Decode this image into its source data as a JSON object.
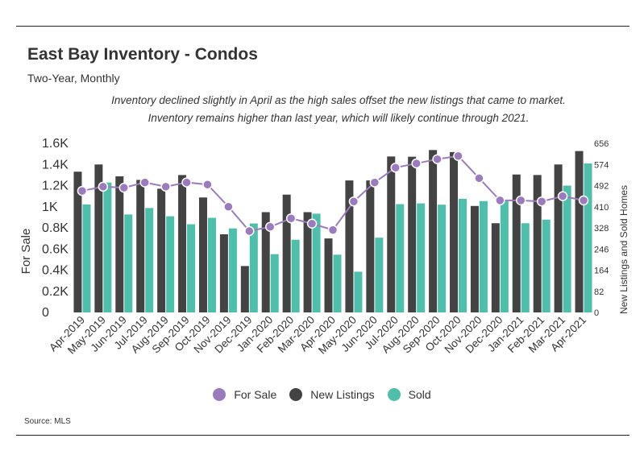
{
  "header": {
    "title": "East Bay Inventory - Condos",
    "subtitle": "Two-Year, Monthly",
    "note": "Inventory declined slightly in April as the high sales offset the new listings that came to market. Inventory remains higher than last year, which will likely continue through 2021."
  },
  "footer": {
    "source": "Source:  MLS"
  },
  "colors": {
    "for_sale": "#9b7bbd",
    "new_listings": "#434343",
    "sold": "#4dbfaa"
  },
  "chart_data": {
    "type": "bar",
    "categories": [
      "Apr-2019",
      "May-2019",
      "Jun-2019",
      "Jul-2019",
      "Aug-2019",
      "Sep-2019",
      "Oct-2019",
      "Nov-2019",
      "Dec-2019",
      "Jan-2020",
      "Feb-2020",
      "Mar-2020",
      "Apr-2020",
      "May-2020",
      "Jun-2020",
      "Jul-2020",
      "Aug-2020",
      "Sep-2020",
      "Oct-2020",
      "Nov-2020",
      "Dec-2020",
      "Jan-2021",
      "Feb-2021",
      "Mar-2021",
      "Apr-2021"
    ],
    "series": [
      {
        "name": "For Sale",
        "type": "line",
        "axis": "left",
        "values": [
          1150,
          1190,
          1180,
          1230,
          1190,
          1230,
          1210,
          1000,
          770,
          810,
          890,
          840,
          780,
          1050,
          1230,
          1370,
          1410,
          1450,
          1480,
          1270,
          1060,
          1060,
          1050,
          1100,
          1060
        ]
      },
      {
        "name": "New Listings",
        "type": "bar",
        "axis": "right",
        "values": [
          546,
          574,
          528,
          514,
          480,
          533,
          446,
          303,
          180,
          389,
          457,
          389,
          287,
          512,
          512,
          605,
          604,
          630,
          622,
          413,
          346,
          535,
          533,
          574,
          626
        ]
      },
      {
        "name": "Sold",
        "type": "bar",
        "axis": "right",
        "values": [
          419,
          504,
          380,
          405,
          373,
          342,
          367,
          326,
          345,
          226,
          282,
          383,
          224,
          158,
          290,
          420,
          423,
          418,
          441,
          432,
          432,
          346,
          360,
          492,
          578
        ]
      }
    ],
    "y_left": {
      "label": "For Sale",
      "ticks": [
        "0",
        "0.2K",
        "0.4K",
        "0.6K",
        "0.8K",
        "1K",
        "1.2K",
        "1.4K",
        "1.6K"
      ],
      "range": [
        0,
        1600
      ]
    },
    "y_right": {
      "label": "New Listings and Sold Homes",
      "ticks": [
        "0",
        "82",
        "164",
        "246",
        "328",
        "410",
        "492",
        "574",
        "656"
      ],
      "range": [
        0,
        656
      ]
    },
    "legend": {
      "position": "bottom"
    },
    "grid": false
  }
}
